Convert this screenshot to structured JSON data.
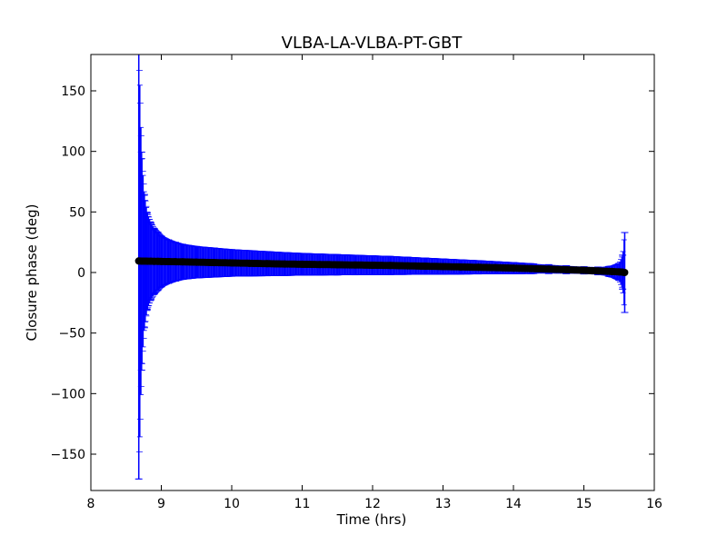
{
  "chart_data": {
    "type": "scatter",
    "title": "VLBA-LA-VLBA-PT-GBT",
    "xlabel": "Time (hrs)",
    "ylabel": "Closure phase (deg)",
    "xlim": [
      8,
      16
    ],
    "ylim": [
      -180,
      180
    ],
    "xticks": [
      8,
      9,
      10,
      11,
      12,
      13,
      14,
      15,
      16
    ],
    "yticks": [
      150,
      100,
      50,
      0,
      -50,
      -100,
      -150
    ],
    "ytick_labels": [
      "150",
      "100",
      "50",
      "0",
      "−50",
      "−100",
      "−150"
    ],
    "grid": false,
    "legend": "none",
    "colors": {
      "marker": "#000000",
      "errorbar": "#0000ff"
    },
    "series": [
      {
        "x": [
          8.68,
          8.72,
          8.76,
          8.8,
          8.85,
          8.9,
          8.95,
          9.0,
          9.1,
          9.2,
          9.3,
          9.5,
          9.75,
          10.0,
          10.25,
          10.5,
          10.75,
          11.0,
          11.25,
          11.5,
          11.75,
          12.0,
          12.25,
          12.5,
          12.75,
          13.0,
          13.25,
          13.5,
          13.75,
          14.0,
          14.25,
          14.5,
          14.75,
          15.0,
          15.2,
          15.4,
          15.5,
          15.55,
          15.58
        ],
        "y": [
          9.5,
          9.4,
          9.4,
          9.3,
          9.3,
          9.2,
          9.2,
          9.1,
          9.0,
          8.9,
          8.8,
          8.5,
          8.2,
          7.9,
          7.6,
          7.3,
          7.0,
          6.8,
          6.6,
          6.4,
          6.2,
          6.0,
          5.8,
          5.5,
          5.2,
          4.9,
          4.6,
          4.3,
          4.0,
          3.6,
          3.2,
          2.8,
          2.3,
          1.8,
          1.3,
          0.8,
          0.5,
          0.3,
          0.0
        ],
        "yerr": [
          180,
          90,
          55,
          40,
          32,
          27,
          24,
          21,
          18,
          16,
          14.5,
          13,
          12,
          11,
          10.5,
          10,
          9.5,
          9,
          8.7,
          8.4,
          8.1,
          7.8,
          7.5,
          7.1,
          6.7,
          6.3,
          5.9,
          5.5,
          5.0,
          4.6,
          4.1,
          3.7,
          3.3,
          3.0,
          3.2,
          4.5,
          7,
          14,
          33
        ]
      }
    ]
  }
}
